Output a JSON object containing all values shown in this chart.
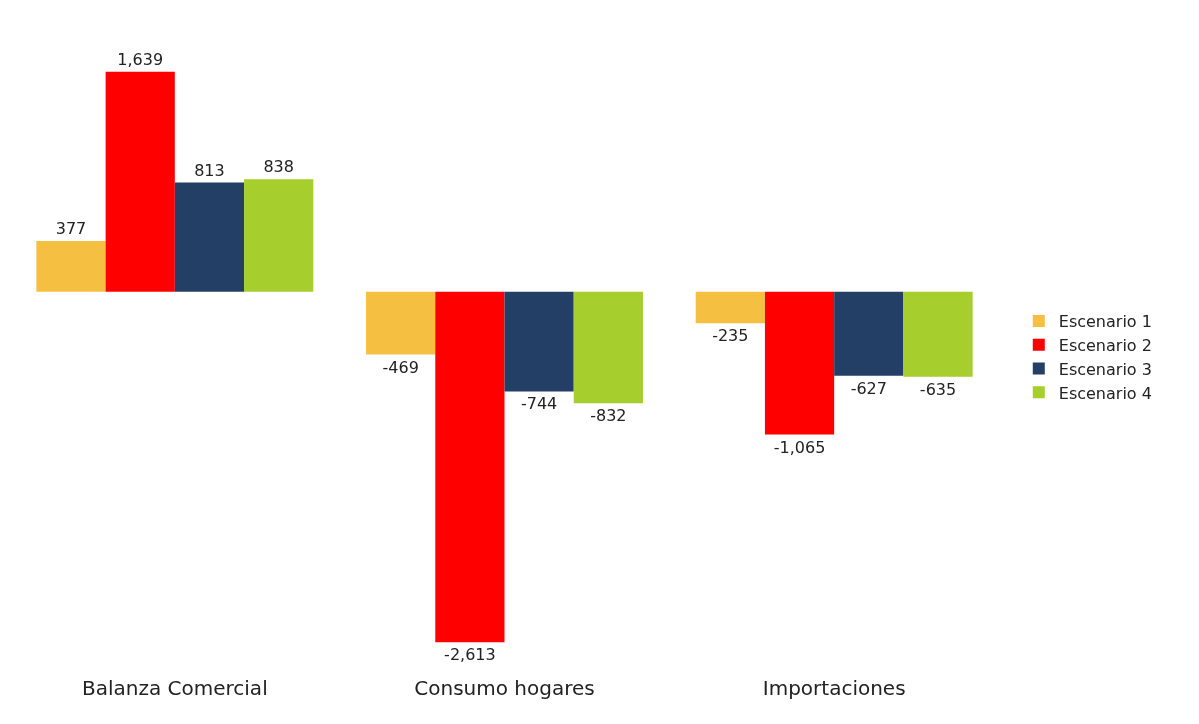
{
  "chart_data": {
    "type": "bar",
    "categories": [
      "Balanza Comercial",
      "Consumo hogares",
      "Importaciones"
    ],
    "series": [
      {
        "name": "Escenario 1",
        "color": "#f5bf42",
        "values": [
          377,
          -469,
          -235
        ],
        "value_labels": [
          "377",
          "-469",
          "-235"
        ]
      },
      {
        "name": "Escenario 2",
        "color": "#ff0000",
        "values": [
          1639,
          -2613,
          -1065
        ],
        "value_labels": [
          "1,639",
          "-2,613",
          "-1,065"
        ]
      },
      {
        "name": "Escenario 3",
        "color": "#243f66",
        "values": [
          813,
          -744,
          -627
        ],
        "value_labels": [
          "813",
          "-744",
          "-627"
        ]
      },
      {
        "name": "Escenario 4",
        "color": "#a6ce2d",
        "values": [
          838,
          -832,
          -635
        ],
        "value_labels": [
          "838",
          "-832",
          "-635"
        ]
      }
    ],
    "legend": "right"
  }
}
